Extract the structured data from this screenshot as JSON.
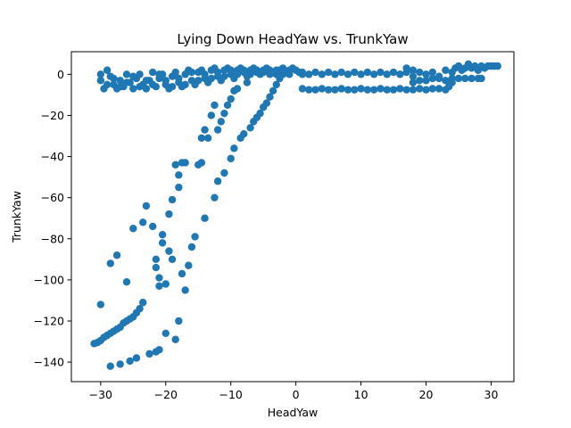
{
  "chart_data": {
    "type": "scatter",
    "title": "Lying Down HeadYaw vs. TrunkYaw",
    "xlabel": "HeadYaw",
    "ylabel": "TrunkYaw",
    "xlim": [
      -34.5,
      33.5
    ],
    "ylim": [
      -149.5,
      11
    ],
    "xticks": [
      -30,
      -20,
      -10,
      0,
      10,
      20,
      30
    ],
    "yticks": [
      0,
      -20,
      -40,
      -60,
      -80,
      -100,
      -120,
      -140
    ],
    "xtick_labels": [
      "−30",
      "−20",
      "−10",
      "0",
      "10",
      "20",
      "30"
    ],
    "ytick_labels": [
      "0",
      "−20",
      "−40",
      "−60",
      "−80",
      "−100",
      "−120",
      "−140"
    ],
    "grid": false,
    "marker_color": "#1f77b4",
    "series": [
      {
        "points": [
          [
            -31,
            -131
          ],
          [
            -30.5,
            -130.5
          ],
          [
            -30,
            -129.5
          ],
          [
            -29.5,
            -128
          ],
          [
            -29,
            -127
          ],
          [
            -28.5,
            -126
          ],
          [
            -28,
            -125
          ],
          [
            -27.5,
            -124
          ],
          [
            -27,
            -123
          ],
          [
            -26.5,
            -121
          ],
          [
            -26,
            -120
          ],
          [
            -25.5,
            -119
          ],
          [
            -25,
            -118
          ],
          [
            -24.5,
            -116
          ],
          [
            -24,
            -114
          ],
          [
            -23.5,
            -111
          ],
          [
            -28.5,
            -142
          ],
          [
            -27,
            -141
          ],
          [
            -25.5,
            -139.5
          ],
          [
            -24.5,
            -138
          ],
          [
            -22.5,
            -136
          ],
          [
            -21.5,
            -135
          ],
          [
            -21,
            -134
          ],
          [
            -30,
            -112
          ],
          [
            -28.5,
            -92
          ],
          [
            -27.5,
            -88
          ],
          [
            -26,
            -101
          ],
          [
            -25,
            -75
          ],
          [
            -23.5,
            -72
          ],
          [
            -23,
            -64
          ],
          [
            -22,
            -74
          ],
          [
            -21.5,
            -90
          ],
          [
            -21.5,
            -94
          ],
          [
            -21,
            -99
          ],
          [
            -21,
            -103
          ],
          [
            -20.5,
            -78
          ],
          [
            -20.5,
            -82
          ],
          [
            -20,
            -102
          ],
          [
            -19.5,
            -86
          ],
          [
            -19.5,
            -68
          ],
          [
            -19,
            -61
          ],
          [
            -19,
            -90
          ],
          [
            -18.5,
            -44
          ],
          [
            -18,
            -49
          ],
          [
            -18,
            -55
          ],
          [
            -17.5,
            -43
          ],
          [
            -17.5,
            -97
          ],
          [
            -17,
            -43
          ],
          [
            -17,
            -105
          ],
          [
            -16.5,
            -93
          ],
          [
            -16,
            -84
          ],
          [
            -15.5,
            -79
          ],
          [
            -15,
            -44
          ],
          [
            -14.5,
            -43
          ],
          [
            -14.5,
            -31
          ],
          [
            -14,
            -70
          ],
          [
            -14,
            -27
          ],
          [
            -13.5,
            -31
          ],
          [
            -13,
            -20
          ],
          [
            -12.5,
            -15
          ],
          [
            -12.5,
            -60
          ],
          [
            -12,
            -27
          ],
          [
            -12,
            -52
          ],
          [
            -11.5,
            -23
          ],
          [
            -11,
            -48
          ],
          [
            -11,
            -19
          ],
          [
            -10.5,
            -15
          ],
          [
            -10,
            -12
          ],
          [
            -10,
            -41
          ],
          [
            -9.5,
            -8
          ],
          [
            -9.5,
            -36
          ],
          [
            -9,
            -7
          ],
          [
            -8.5,
            -31
          ],
          [
            -8,
            -29
          ],
          [
            -7.5,
            -4
          ],
          [
            -7,
            -26
          ],
          [
            -6.5,
            -23
          ],
          [
            -6,
            -21
          ],
          [
            -5.5,
            -19
          ],
          [
            -5,
            -16
          ],
          [
            -4.5,
            -14
          ],
          [
            -4,
            -11
          ],
          [
            -3.5,
            -8
          ],
          [
            -3,
            -5
          ],
          [
            -2.5,
            -2
          ],
          [
            -2,
            0
          ],
          [
            -20,
            -126
          ],
          [
            -18.5,
            -129
          ],
          [
            -18,
            -120
          ],
          [
            -30,
            0
          ],
          [
            -30,
            -3
          ],
          [
            -29.5,
            -7
          ],
          [
            -29,
            2
          ],
          [
            -28.5,
            -1
          ],
          [
            -28,
            -5
          ],
          [
            -27.5,
            -7
          ],
          [
            -27,
            -3
          ],
          [
            -26.5,
            -6
          ],
          [
            -26,
            0
          ],
          [
            -25.5,
            -4
          ],
          [
            -25,
            -7
          ],
          [
            -24.5,
            -2
          ],
          [
            -24,
            0
          ],
          [
            -23.5,
            -5
          ],
          [
            -23,
            -7
          ],
          [
            -22.5,
            -3
          ],
          [
            -22,
            1
          ],
          [
            -21.5,
            -6
          ],
          [
            -21,
            -2
          ],
          [
            -20.5,
            0
          ],
          [
            -20,
            -5
          ],
          [
            -19.5,
            -7
          ],
          [
            -19,
            -1
          ],
          [
            -18.5,
            1
          ],
          [
            -18,
            -4
          ],
          [
            -17.5,
            -6
          ],
          [
            -17,
            0
          ],
          [
            -16.5,
            2
          ],
          [
            -16,
            -3
          ],
          [
            -15.5,
            -5
          ],
          [
            -15,
            1
          ],
          [
            -14.5,
            2
          ],
          [
            -14,
            -2
          ],
          [
            -13.5,
            -4
          ],
          [
            -13,
            2
          ],
          [
            -12.5,
            3
          ],
          [
            -12,
            -1
          ],
          [
            -11.5,
            -3
          ],
          [
            -11,
            2
          ],
          [
            -10.5,
            3
          ],
          [
            -10,
            0
          ],
          [
            -9.5,
            -2
          ],
          [
            -9,
            2
          ],
          [
            -8.5,
            3
          ],
          [
            -8,
            1
          ],
          [
            -7.5,
            -1
          ],
          [
            -7,
            2
          ],
          [
            -6.5,
            3
          ],
          [
            -6,
            1
          ],
          [
            -5.5,
            0
          ],
          [
            -5,
            2
          ],
          [
            -4.5,
            3
          ],
          [
            -4,
            2
          ],
          [
            -3.5,
            1
          ],
          [
            -3,
            0
          ],
          [
            -2.5,
            2
          ],
          [
            -2,
            3
          ],
          [
            -1.5,
            1
          ],
          [
            -1,
            2
          ],
          [
            -0.5,
            3
          ],
          [
            0,
            2
          ],
          [
            0.5,
            1
          ],
          [
            1,
            0
          ],
          [
            -29,
            -5
          ],
          [
            -28,
            -2
          ],
          [
            -27,
            -6
          ],
          [
            -26,
            -4
          ],
          [
            -25,
            -1
          ],
          [
            -24,
            -6
          ],
          [
            -23,
            -3
          ],
          [
            -22,
            -5
          ],
          [
            -21,
            0
          ],
          [
            -20,
            -3
          ],
          [
            -19,
            -6
          ],
          [
            -18,
            -2
          ],
          [
            -17,
            -5
          ],
          [
            -16,
            1
          ],
          [
            -15,
            -3
          ],
          [
            -14,
            0
          ],
          [
            -13,
            -2
          ],
          [
            -12,
            1
          ],
          [
            -11,
            -1
          ],
          [
            -10,
            2
          ],
          [
            -9,
            0
          ],
          [
            -8,
            2
          ],
          [
            -7,
            0
          ],
          [
            -6,
            2
          ],
          [
            -5,
            1
          ],
          [
            -4,
            0
          ],
          [
            -3,
            2
          ],
          [
            -2,
            1
          ],
          [
            -1,
            0
          ],
          [
            1,
            -7
          ],
          [
            2,
            -7.5
          ],
          [
            3,
            -7.5
          ],
          [
            4,
            -7
          ],
          [
            5,
            -7.5
          ],
          [
            6,
            -7.5
          ],
          [
            7,
            -7
          ],
          [
            8,
            -7.5
          ],
          [
            9,
            -7.5
          ],
          [
            10,
            -7
          ],
          [
            11,
            -7.5
          ],
          [
            12,
            -7.5
          ],
          [
            13,
            -7
          ],
          [
            14,
            -7.5
          ],
          [
            15,
            -7.5
          ],
          [
            16,
            -7
          ],
          [
            17,
            -7.5
          ],
          [
            18,
            -7.5
          ],
          [
            19,
            -7
          ],
          [
            20,
            -7.5
          ],
          [
            21,
            -7
          ],
          [
            22,
            -7
          ],
          [
            23,
            -7.5
          ],
          [
            1,
            1
          ],
          [
            2,
            0
          ],
          [
            3,
            1
          ],
          [
            4,
            0
          ],
          [
            5,
            1
          ],
          [
            6,
            0
          ],
          [
            7,
            1
          ],
          [
            8,
            0
          ],
          [
            9,
            1
          ],
          [
            10,
            0
          ],
          [
            11,
            1
          ],
          [
            12,
            0
          ],
          [
            13,
            1
          ],
          [
            14,
            0
          ],
          [
            15,
            1
          ],
          [
            16,
            0
          ],
          [
            17,
            1
          ],
          [
            17,
            3
          ],
          [
            18,
            2
          ],
          [
            18,
            -1
          ],
          [
            19,
            1
          ],
          [
            20,
            0
          ],
          [
            21,
            1
          ],
          [
            22,
            -1
          ],
          [
            23,
            2
          ],
          [
            24,
            1
          ],
          [
            24.5,
            3
          ],
          [
            25,
            4
          ],
          [
            25.5,
            2
          ],
          [
            26,
            3
          ],
          [
            26.5,
            5
          ],
          [
            27,
            3
          ],
          [
            27.5,
            4
          ],
          [
            28,
            2
          ],
          [
            28.5,
            4
          ],
          [
            29,
            3
          ],
          [
            29.5,
            4
          ],
          [
            30,
            4
          ],
          [
            30.5,
            4
          ],
          [
            31,
            4
          ],
          [
            18,
            -4
          ],
          [
            19,
            -3
          ],
          [
            20,
            -3
          ],
          [
            21,
            -2
          ],
          [
            22,
            -2
          ],
          [
            23,
            -3
          ],
          [
            24,
            -2
          ],
          [
            25,
            -2
          ],
          [
            26,
            -2
          ],
          [
            27,
            -2
          ],
          [
            28,
            -2
          ],
          [
            28.5,
            -2
          ],
          [
            24,
            -4
          ],
          [
            23.5,
            -6
          ]
        ]
      }
    ]
  }
}
